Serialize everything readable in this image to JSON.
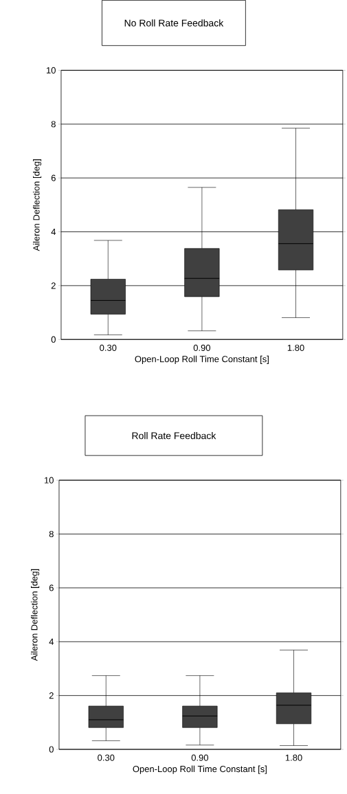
{
  "chart_data": [
    {
      "type": "box",
      "title": "No Roll Rate Feedback",
      "xlabel": "Open-Loop Roll Time Constant [s]",
      "ylabel": "Aileron Deflection [deg]",
      "categories": [
        "0.30",
        "0.90",
        "1.80"
      ],
      "color": "#404040",
      "ylim": [
        0,
        10
      ],
      "yticks": [
        0,
        2,
        4,
        6,
        8,
        10
      ],
      "grid": "y",
      "boxes": [
        {
          "low": 0.17,
          "q1": 0.94,
          "median": 1.45,
          "q3": 2.24,
          "high": 3.68
        },
        {
          "low": 0.32,
          "q1": 1.59,
          "median": 2.27,
          "q3": 3.38,
          "high": 5.65
        },
        {
          "low": 0.81,
          "q1": 2.58,
          "median": 3.56,
          "q3": 4.82,
          "high": 7.85
        }
      ]
    },
    {
      "type": "box",
      "title": "Roll Rate Feedback",
      "xlabel": "Open-Loop Roll Time Constant [s]",
      "ylabel": "Aileron Deflection [deg]",
      "categories": [
        "0.30",
        "0.90",
        "1.80"
      ],
      "color": "#404040",
      "ylim": [
        0,
        10
      ],
      "yticks": [
        0,
        2,
        4,
        6,
        8,
        10
      ],
      "grid": "y",
      "boxes": [
        {
          "low": 0.32,
          "q1": 0.81,
          "median": 1.1,
          "q3": 1.61,
          "high": 2.74
        },
        {
          "low": 0.16,
          "q1": 0.81,
          "median": 1.24,
          "q3": 1.61,
          "high": 2.74
        },
        {
          "low": 0.14,
          "q1": 0.95,
          "median": 1.64,
          "q3": 2.1,
          "high": 3.69
        }
      ]
    }
  ]
}
